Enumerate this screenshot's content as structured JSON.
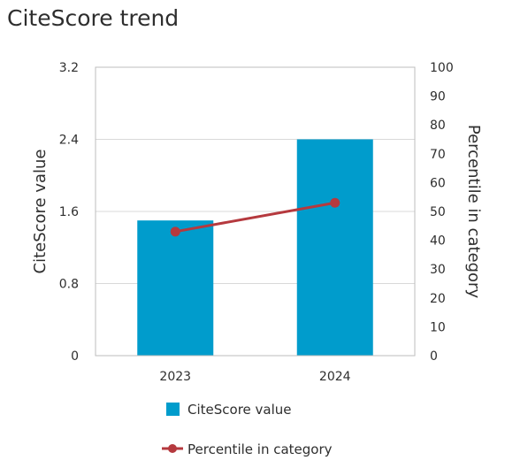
{
  "title": "CiteScore trend",
  "chart_data": {
    "type": "bar",
    "categories": [
      "2023",
      "2024"
    ],
    "series": [
      {
        "name": "CiteScore value",
        "type": "bar",
        "axis": "left",
        "values": [
          1.5,
          2.4
        ],
        "color": "#009ccc"
      },
      {
        "name": "Percentile in category",
        "type": "line",
        "axis": "right",
        "values": [
          43,
          53
        ],
        "color": "#b5393e"
      }
    ],
    "ylabel": "CiteScore value",
    "ylabel_right": "Percentile in category",
    "ylim": [
      0,
      3.2
    ],
    "ylim_right": [
      0,
      100
    ],
    "yticks": [
      "0",
      "0.8",
      "1.6",
      "2.4",
      "3.2"
    ],
    "yticks_right": [
      "0",
      "10",
      "20",
      "30",
      "40",
      "50",
      "60",
      "70",
      "80",
      "90",
      "100"
    ],
    "grid": true,
    "legend_placement": "bottom"
  }
}
